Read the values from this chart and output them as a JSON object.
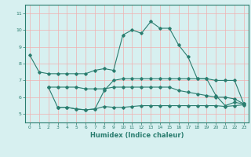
{
  "line1_x": [
    0,
    1,
    2,
    3,
    4,
    5,
    6,
    7,
    8,
    9,
    10,
    11,
    12,
    13,
    14,
    15,
    16,
    17,
    18,
    19,
    20,
    21,
    22,
    23
  ],
  "line1_y": [
    8.5,
    7.5,
    7.4,
    7.4,
    7.4,
    7.4,
    7.4,
    7.6,
    7.7,
    7.6,
    9.7,
    10.0,
    9.8,
    10.5,
    10.1,
    10.1,
    9.1,
    8.4,
    7.1,
    7.1,
    6.1,
    5.5,
    5.7,
    5.6
  ],
  "line2_x": [
    2,
    3,
    4,
    5,
    6,
    7,
    8,
    9,
    10,
    11,
    12,
    13,
    14,
    15,
    16,
    17,
    18,
    19,
    20,
    21,
    22,
    23
  ],
  "line2_y": [
    6.6,
    6.6,
    6.6,
    6.6,
    6.5,
    6.5,
    6.5,
    6.6,
    6.6,
    6.6,
    6.6,
    6.6,
    6.6,
    6.6,
    6.4,
    6.3,
    6.2,
    6.1,
    6.0,
    6.0,
    5.9,
    5.6
  ],
  "line3_x": [
    2,
    3,
    4,
    5,
    6,
    7,
    8,
    9,
    10,
    11,
    12,
    13,
    14,
    15,
    16,
    17,
    18,
    19,
    20,
    21,
    22,
    23
  ],
  "line3_y": [
    6.6,
    5.4,
    5.4,
    5.3,
    5.25,
    5.3,
    6.4,
    7.0,
    7.1,
    7.1,
    7.1,
    7.1,
    7.1,
    7.1,
    7.1,
    7.1,
    7.1,
    7.1,
    7.0,
    7.0,
    7.0,
    5.6
  ],
  "line4_x": [
    3,
    4,
    5,
    6,
    7,
    8,
    9,
    10,
    11,
    12,
    13,
    14,
    15,
    16,
    17,
    18,
    19,
    20,
    21,
    22,
    23
  ],
  "line4_y": [
    5.4,
    5.4,
    5.3,
    5.25,
    5.3,
    5.45,
    5.4,
    5.4,
    5.45,
    5.5,
    5.5,
    5.5,
    5.5,
    5.5,
    5.5,
    5.5,
    5.5,
    5.5,
    5.45,
    5.5,
    5.55
  ],
  "line_color": "#2a7d6f",
  "bg_color": "#d7f0f0",
  "grid_color": "#f0b0b0",
  "xlabel": "Humidex (Indice chaleur)",
  "ylim": [
    4.5,
    11.5
  ],
  "xlim": [
    -0.5,
    23.5
  ],
  "yticks": [
    5,
    6,
    7,
    8,
    9,
    10,
    11
  ],
  "xticks": [
    0,
    1,
    2,
    3,
    4,
    5,
    6,
    7,
    8,
    9,
    10,
    11,
    12,
    13,
    14,
    15,
    16,
    17,
    18,
    19,
    20,
    21,
    22,
    23
  ]
}
